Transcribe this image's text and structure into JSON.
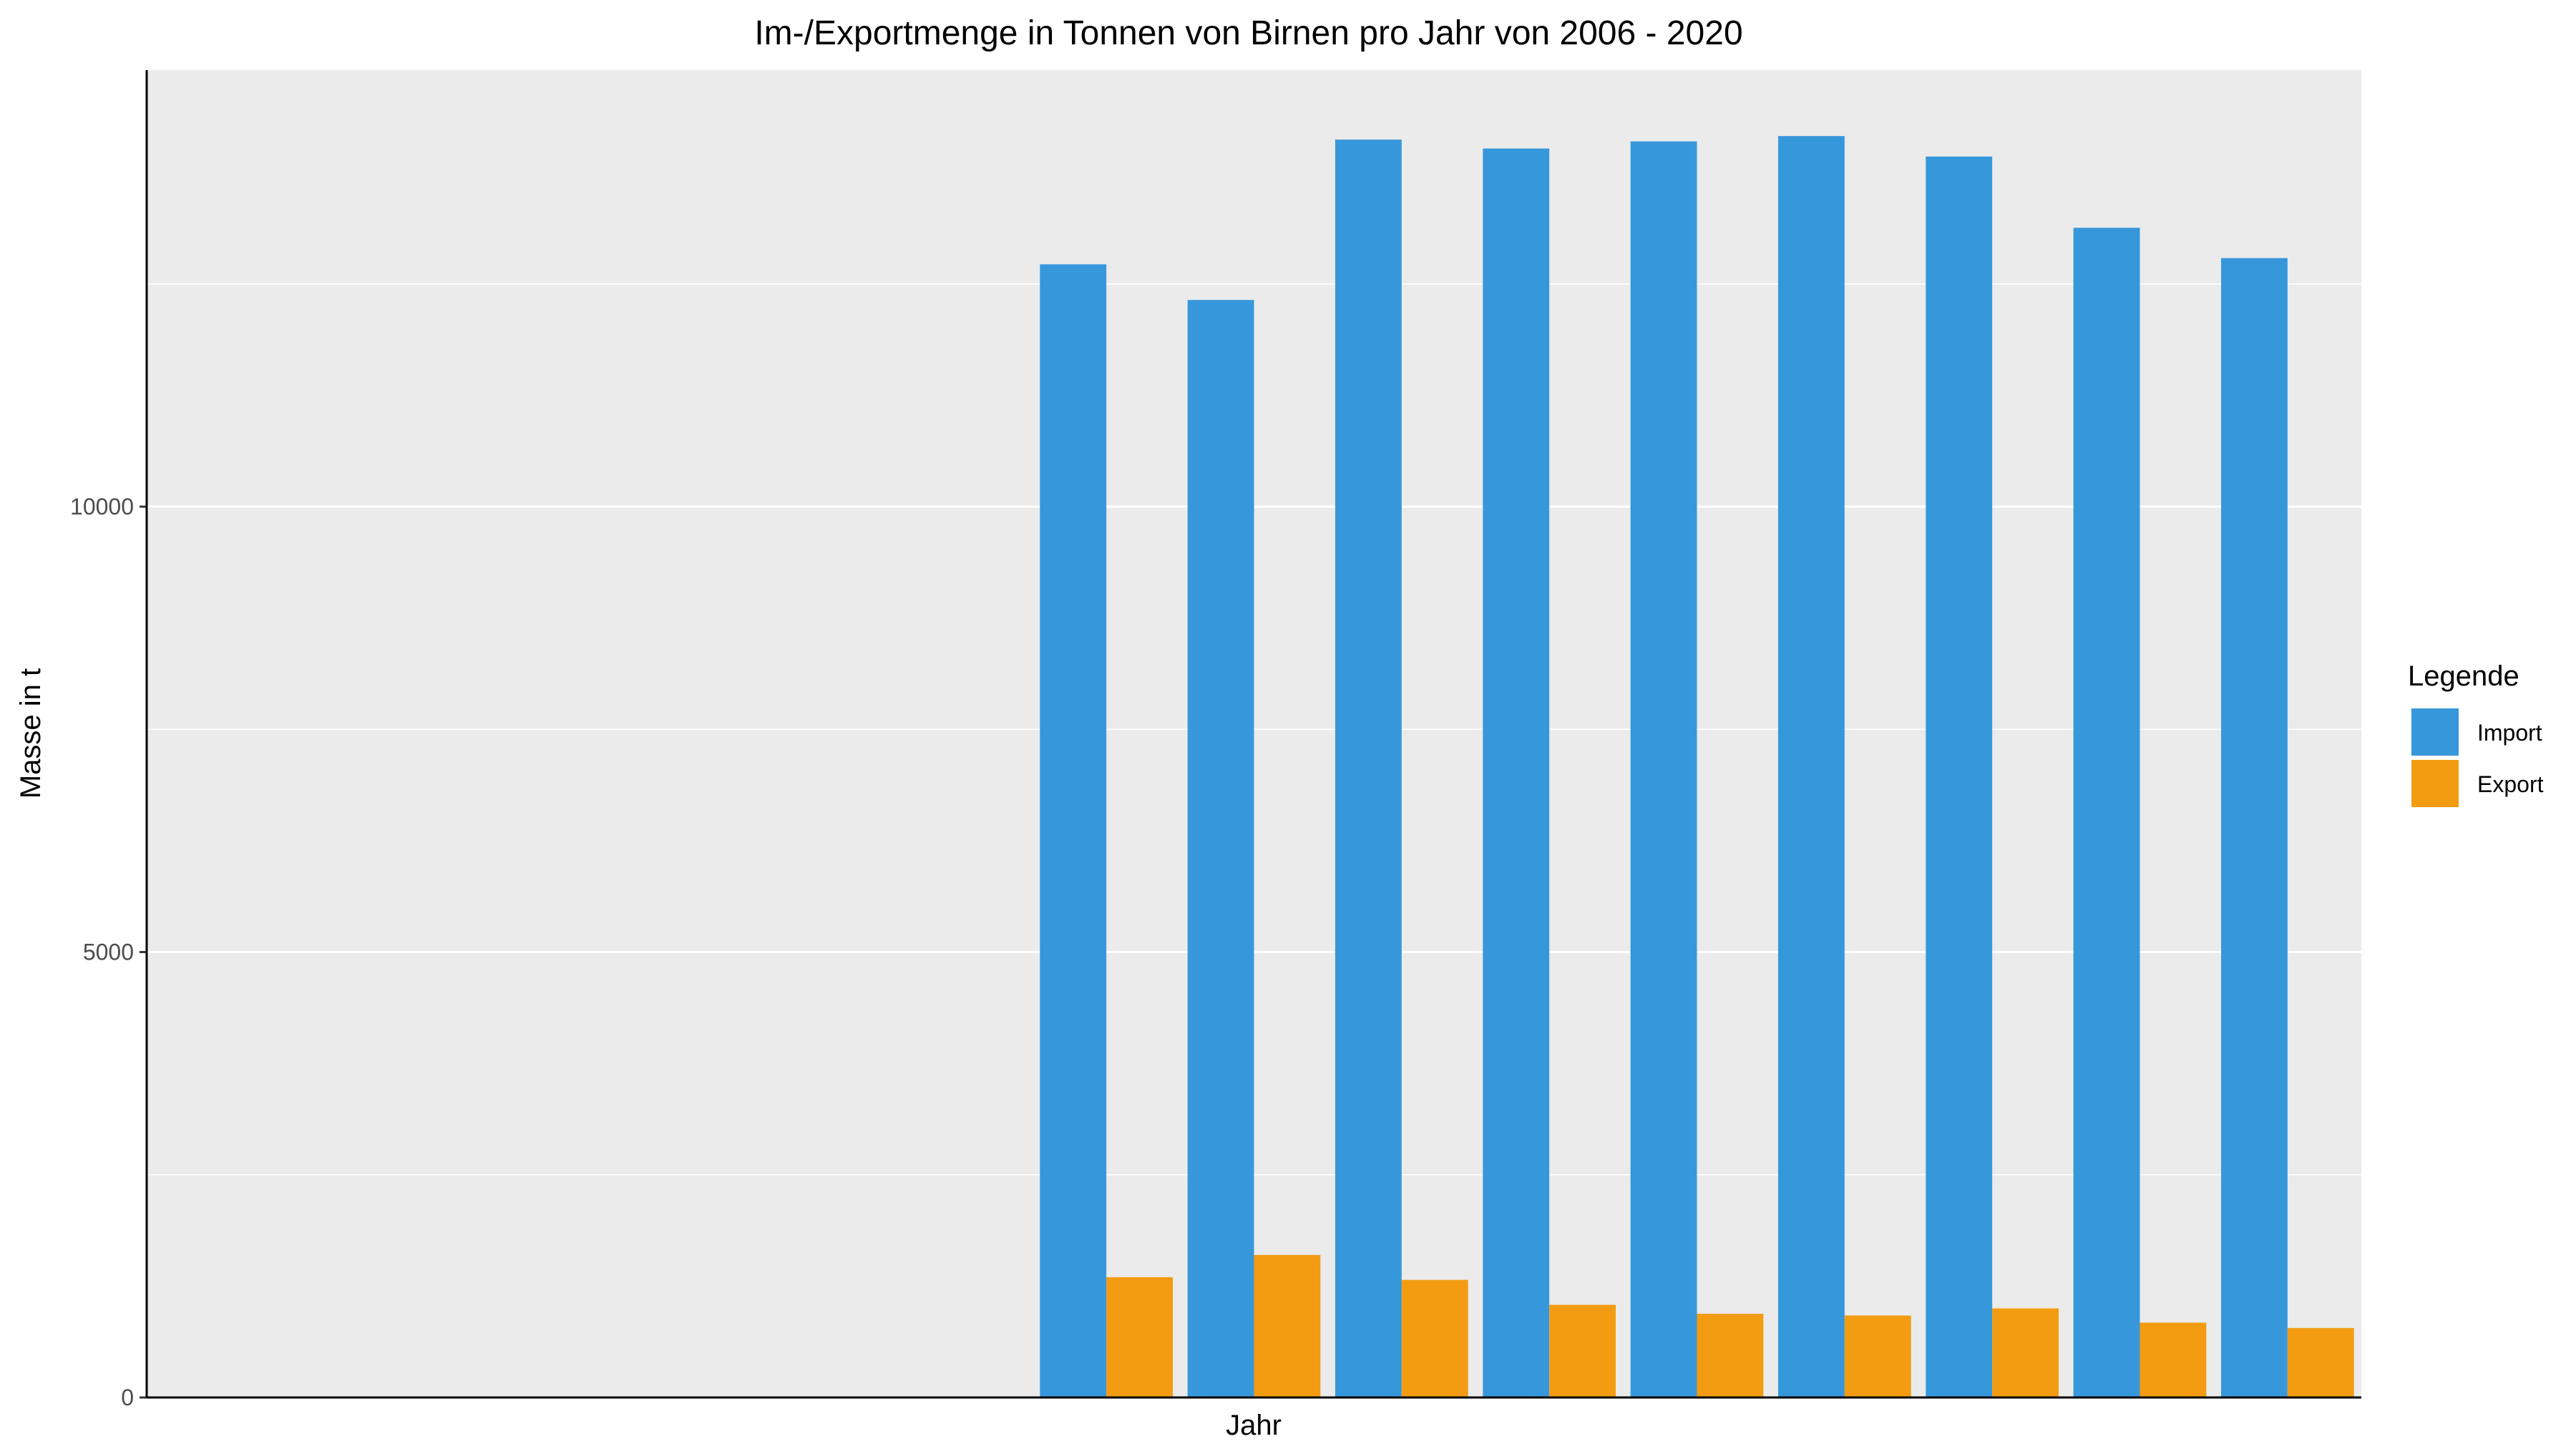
{
  "chart_data": {
    "type": "bar",
    "title": "Im-/Exportmenge in Tonnen von Birnen pro Jahr von 2006 - 2020",
    "xlabel": "Jahr",
    "ylabel": "Masse in t",
    "ylim": [
      0,
      14900
    ],
    "x_slots": 15,
    "yticks": [
      0,
      5000,
      10000
    ],
    "ytick_labels": [
      "0",
      "5000",
      "10000"
    ],
    "minor_yticks": [
      2500,
      7500,
      12500
    ],
    "grid": true,
    "legend": {
      "title": "Legende",
      "position": "right"
    },
    "series": [
      {
        "name": "Import",
        "color": "#3797db",
        "start_slot": 6,
        "values": [
          12720,
          12320,
          14120,
          14020,
          14100,
          14160,
          13930,
          13130,
          12790
        ]
      },
      {
        "name": "Export",
        "color": "#f39c12",
        "start_slot": 6,
        "values": [
          1350,
          1600,
          1320,
          1040,
          940,
          920,
          1000,
          840,
          780
        ]
      }
    ],
    "colors": {
      "panel": "#ebebeb",
      "grid": "#ffffff",
      "axis": "#000000"
    }
  }
}
